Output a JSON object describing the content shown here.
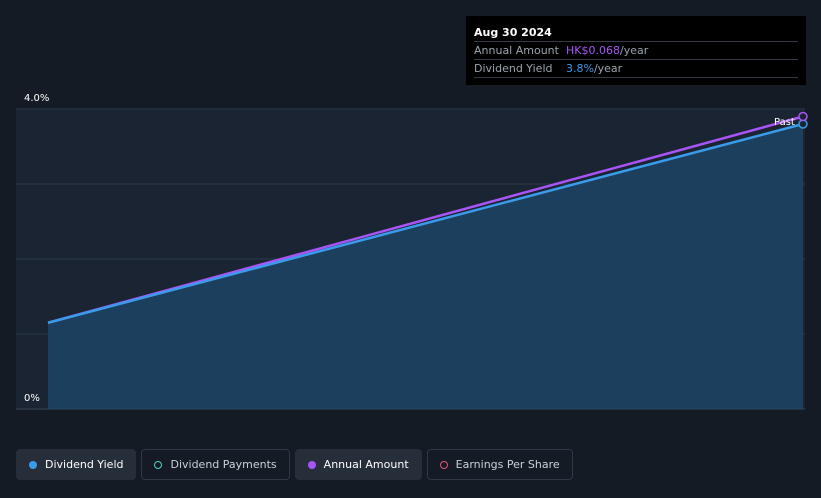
{
  "tooltip": {
    "date": "Aug 30 2024",
    "annual_amount_label": "Annual Amount",
    "annual_amount_value": "HK$0.068",
    "annual_amount_unit": "/year",
    "dividend_yield_label": "Dividend Yield",
    "dividend_yield_value": "3.8%",
    "dividend_yield_unit": "/year"
  },
  "legend": [
    {
      "label": "Dividend Yield",
      "color": "#3a9bea",
      "filled": true,
      "active": true
    },
    {
      "label": "Dividend Payments",
      "color": "#4fd1c5",
      "filled": false,
      "active": false
    },
    {
      "label": "Annual Amount",
      "color": "#a855f7",
      "filled": true,
      "active": true
    },
    {
      "label": "Earnings Per Share",
      "color": "#e0567a",
      "filled": false,
      "active": false
    }
  ],
  "chart_data": {
    "type": "line",
    "title": "",
    "xlabel": "",
    "ylabel": "",
    "ylim": [
      0,
      4.0
    ],
    "y_tick_labels": [
      "0%",
      "4.0%"
    ],
    "grid": true,
    "series": [
      {
        "name": "Dividend Yield",
        "color": "#3a9bea",
        "x": [
          0,
          1
        ],
        "values": [
          1.15,
          3.8
        ]
      },
      {
        "name": "Annual Amount",
        "color": "#a855f7",
        "x": [
          0,
          1
        ],
        "values": [
          1.15,
          3.9
        ]
      }
    ],
    "annotations": [
      {
        "text": "Past"
      }
    ]
  }
}
